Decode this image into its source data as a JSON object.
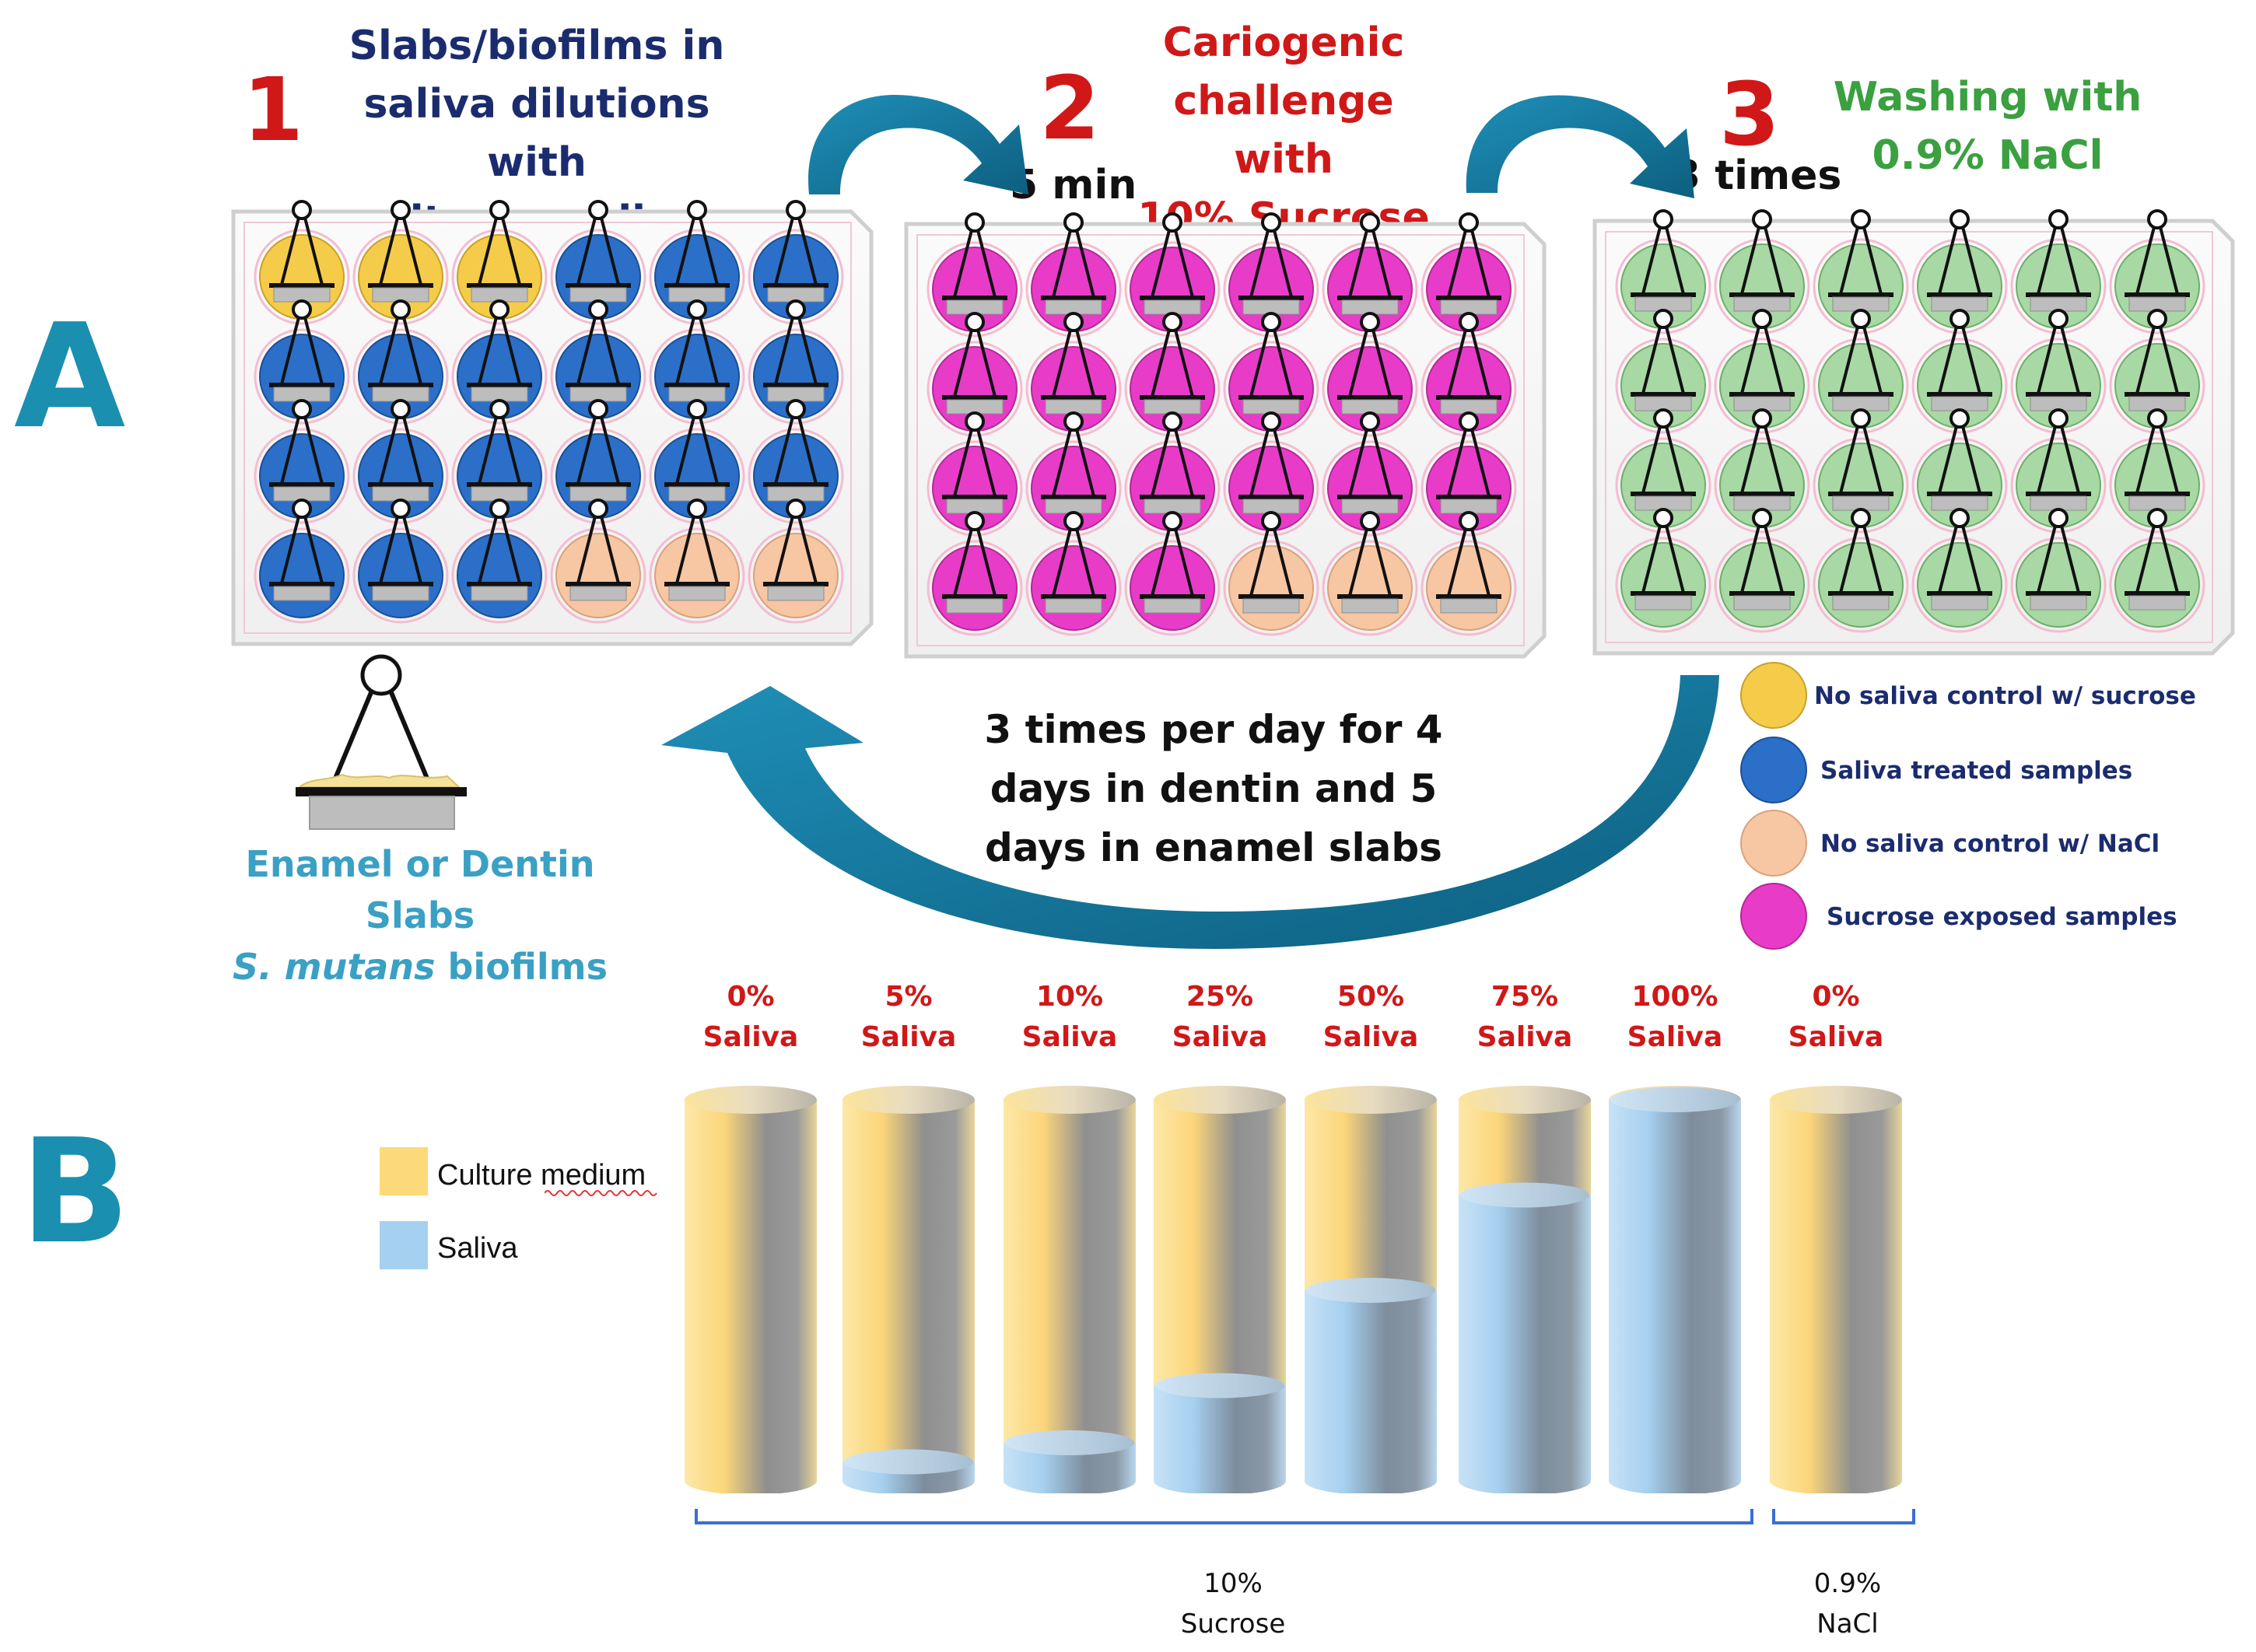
{
  "panel_a": {
    "letter": "A",
    "step1": {
      "number": "1",
      "lines": [
        "Slabs/biofilms in",
        "saliva dilutions with",
        "culture medium"
      ]
    },
    "step2": {
      "number": "2",
      "lines": [
        "Cariogenic",
        "challenge with",
        "10% Sucrose"
      ],
      "time_label": "5 min"
    },
    "step3": {
      "number": "3",
      "lines": [
        "Washing with",
        "0.9% NaCl"
      ],
      "time_label": "3 times"
    },
    "cycle_lines": [
      "3 times per day for 4",
      "days in dentin and 5",
      "days in enamel slabs"
    ],
    "slab_caption": {
      "line1": "Enamel or Dentin Slabs",
      "line2_italic": "S. mutans",
      "line2_rest": " biofilms"
    },
    "legend": [
      {
        "label": "No saliva control w/ sucrose",
        "color": "#f5cc4a"
      },
      {
        "label": "Saliva treated samples",
        "color": "#2b6fc8"
      },
      {
        "label": "No saliva control w/ NaCl",
        "color": "#f7c6a3"
      },
      {
        "label": "Sucrose exposed samples",
        "color": "#e83cc8"
      }
    ],
    "plates": [
      {
        "rows": [
          [
            "Y",
            "Y",
            "Y",
            "B",
            "B",
            "B"
          ],
          [
            "B",
            "B",
            "B",
            "B",
            "B",
            "B"
          ],
          [
            "B",
            "B",
            "B",
            "B",
            "B",
            "B"
          ],
          [
            "B",
            "B",
            "B",
            "P",
            "P",
            "P"
          ]
        ]
      },
      {
        "rows": [
          [
            "M",
            "M",
            "M",
            "M",
            "M",
            "M"
          ],
          [
            "M",
            "M",
            "M",
            "M",
            "M",
            "M"
          ],
          [
            "M",
            "M",
            "M",
            "M",
            "M",
            "M"
          ],
          [
            "M",
            "M",
            "M",
            "P",
            "P",
            "P"
          ]
        ]
      },
      {
        "rows": [
          [
            "G",
            "G",
            "G",
            "G",
            "G",
            "G"
          ],
          [
            "G",
            "G",
            "G",
            "G",
            "G",
            "G"
          ],
          [
            "G",
            "G",
            "G",
            "G",
            "G",
            "G"
          ],
          [
            "G",
            "G",
            "G",
            "G",
            "G",
            "G"
          ]
        ]
      }
    ],
    "well_colors": {
      "Y": "#f5cc4a",
      "B": "#2b6fc8",
      "P": "#f7c6a3",
      "M": "#e83cc8",
      "G": "#a8d8a4"
    }
  },
  "panel_b": {
    "letter": "B",
    "legend": [
      {
        "label": "Culture medium",
        "color": "#fcd97a"
      },
      {
        "label": "Saliva",
        "color": "#a6d0ef"
      }
    ],
    "columns": [
      {
        "label_top": "0%",
        "label_bottom": "Saliva",
        "saliva_fraction": 0.0
      },
      {
        "label_top": "5%",
        "label_bottom": "Saliva",
        "saliva_fraction": 0.05
      },
      {
        "label_top": "10%",
        "label_bottom": "Saliva",
        "saliva_fraction": 0.1
      },
      {
        "label_top": "25%",
        "label_bottom": "Saliva",
        "saliva_fraction": 0.25
      },
      {
        "label_top": "50%",
        "label_bottom": "Saliva",
        "saliva_fraction": 0.5
      },
      {
        "label_top": "75%",
        "label_bottom": "Saliva",
        "saliva_fraction": 0.75
      },
      {
        "label_top": "100%",
        "label_bottom": "Saliva",
        "saliva_fraction": 1.0
      },
      {
        "label_top": "0%",
        "label_bottom": "Saliva",
        "saliva_fraction": 0.0
      }
    ],
    "groups": [
      {
        "line1": "10%",
        "line2": "Sucrose"
      },
      {
        "line1": "0.9%",
        "line2": "NaCl"
      }
    ]
  }
}
